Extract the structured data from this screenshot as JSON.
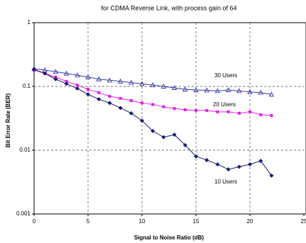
{
  "chart_data": {
    "type": "line",
    "title": "for CDMA Reverse Link, with process gain of 64",
    "x_label": "Signal to Noise Ratio (dB)",
    "y_label": "Bit Error Rate (BER)",
    "log_y": true,
    "grid": true,
    "xlim": [
      0,
      25
    ],
    "xticks": [
      0,
      5,
      10,
      15,
      20,
      25
    ],
    "ylim": [
      0.001,
      1
    ],
    "yticks": [
      1,
      0.1,
      0.01,
      0.001
    ],
    "x": [
      0,
      1,
      2,
      3,
      4,
      5,
      6,
      7,
      8,
      9,
      10,
      11,
      12,
      13,
      14,
      15,
      16,
      17,
      18,
      19,
      20,
      21,
      22
    ],
    "series": [
      {
        "name": "30 Users",
        "color": "#3a3a9a",
        "marker": "triangle",
        "values": [
          0.19,
          0.18,
          0.17,
          0.16,
          0.15,
          0.14,
          0.13,
          0.125,
          0.12,
          0.115,
          0.11,
          0.105,
          0.1,
          0.095,
          0.09,
          0.088,
          0.087,
          0.085,
          0.088,
          0.085,
          0.082,
          0.08,
          0.075
        ]
      },
      {
        "name": "20 Users",
        "color": "#e020e0",
        "marker": "square",
        "values": [
          0.18,
          0.16,
          0.14,
          0.12,
          0.105,
          0.09,
          0.08,
          0.07,
          0.065,
          0.06,
          0.055,
          0.052,
          0.048,
          0.045,
          0.043,
          0.042,
          0.042,
          0.04,
          0.04,
          0.038,
          0.04,
          0.036,
          0.035
        ]
      },
      {
        "name": "10 Users",
        "color": "#1a1a6e",
        "marker": "diamond",
        "values": [
          0.185,
          0.16,
          0.13,
          0.11,
          0.093,
          0.075,
          0.063,
          0.055,
          0.046,
          0.038,
          0.029,
          0.02,
          0.016,
          0.0175,
          0.012,
          0.008,
          0.007,
          0.006,
          0.005,
          0.0055,
          0.006,
          0.0068,
          0.004
        ]
      }
    ]
  }
}
